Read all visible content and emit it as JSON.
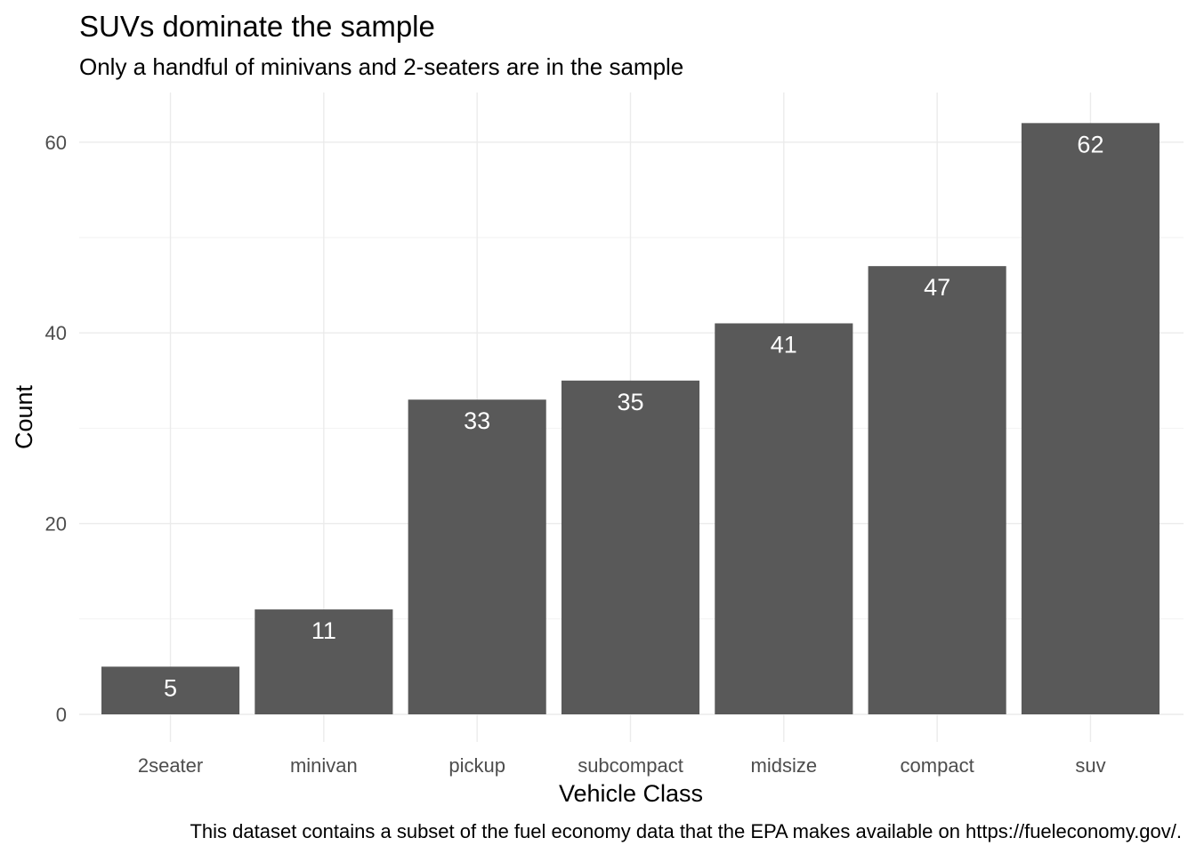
{
  "chart_data": {
    "type": "bar",
    "title": "SUVs dominate the sample",
    "subtitle": "Only a handful of minivans and 2-seaters are in the sample",
    "xlabel": "Vehicle Class",
    "ylabel": "Count",
    "caption": "This dataset contains a subset of the fuel economy data that the EPA makes available on https://fueleconomy.gov/.",
    "categories": [
      "2seater",
      "minivan",
      "pickup",
      "subcompact",
      "midsize",
      "compact",
      "suv"
    ],
    "values": [
      5,
      11,
      33,
      35,
      41,
      47,
      62
    ],
    "ylim": [
      0,
      65
    ],
    "yticks": [
      0,
      20,
      40,
      60
    ],
    "grid": true,
    "bar_color": "#595959",
    "label_color": "#ffffff",
    "legend": "none"
  }
}
